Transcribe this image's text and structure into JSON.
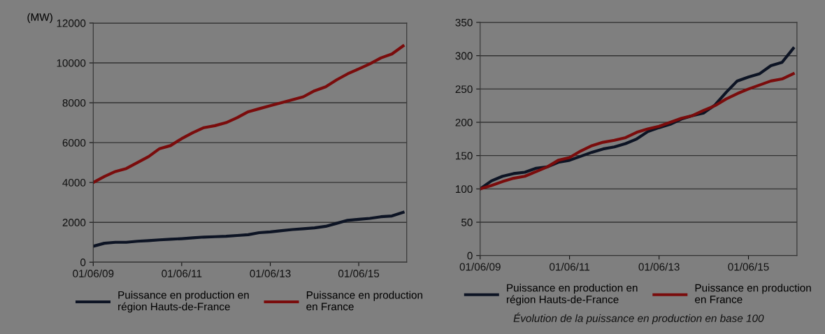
{
  "chart_data": [
    {
      "type": "line",
      "ylabel": "(MW)",
      "x": [
        "2009-06-01",
        "2009-09-01",
        "2009-12-01",
        "2010-03-01",
        "2010-06-01",
        "2010-09-01",
        "2010-12-01",
        "2011-03-01",
        "2011-06-01",
        "2011-09-01",
        "2011-12-01",
        "2012-03-01",
        "2012-06-01",
        "2012-09-01",
        "2012-12-01",
        "2013-03-01",
        "2013-06-01",
        "2013-09-01",
        "2013-12-01",
        "2014-03-01",
        "2014-06-01",
        "2014-09-01",
        "2014-12-01",
        "2015-03-01",
        "2015-06-01",
        "2015-09-01",
        "2015-12-01",
        "2016-03-01",
        "2016-06-01"
      ],
      "series": [
        {
          "name": "Puissance en production en\nrégion Hauts-de-France",
          "color": "#0d1424",
          "values": [
            800,
            950,
            1000,
            1000,
            1050,
            1080,
            1120,
            1150,
            1180,
            1220,
            1260,
            1280,
            1300,
            1340,
            1380,
            1480,
            1520,
            1580,
            1640,
            1680,
            1720,
            1800,
            1950,
            2100,
            2150,
            2200,
            2280,
            2320,
            2500
          ]
        },
        {
          "name": "Puissance en production\nen France",
          "color": "#7a0c0c",
          "values": [
            4000,
            4300,
            4550,
            4700,
            5000,
            5300,
            5700,
            5850,
            6200,
            6500,
            6750,
            6850,
            7000,
            7250,
            7550,
            7700,
            7850,
            8000,
            8150,
            8300,
            8600,
            8800,
            9150,
            9450,
            9700,
            9950,
            10250,
            10450,
            10850
          ]
        }
      ],
      "xlim": [
        "2009-06-01",
        "2016-07-01"
      ],
      "xticks": [
        {
          "value": "2009-06-01",
          "label": "01/06/09"
        },
        {
          "value": "2011-06-01",
          "label": "01/06/11"
        },
        {
          "value": "2013-06-01",
          "label": "01/06/13"
        },
        {
          "value": "2015-06-01",
          "label": "01/06/15"
        }
      ],
      "ylim": [
        0,
        12000
      ],
      "yticks": [
        0,
        2000,
        4000,
        6000,
        8000,
        10000,
        12000
      ],
      "grid": "y",
      "legend": "bottom",
      "marker": "none",
      "line_style": "solid"
    },
    {
      "type": "line",
      "x": [
        "2009-06-01",
        "2009-09-01",
        "2009-12-01",
        "2010-03-01",
        "2010-06-01",
        "2010-09-01",
        "2010-12-01",
        "2011-03-01",
        "2011-06-01",
        "2011-09-01",
        "2011-12-01",
        "2012-03-01",
        "2012-06-01",
        "2012-09-01",
        "2012-12-01",
        "2013-03-01",
        "2013-06-01",
        "2013-09-01",
        "2013-12-01",
        "2014-03-01",
        "2014-06-01",
        "2014-09-01",
        "2014-12-01",
        "2015-03-01",
        "2015-06-01",
        "2015-09-01",
        "2015-12-01",
        "2016-03-01",
        "2016-06-01"
      ],
      "series": [
        {
          "name": "Puissance en production en\nrégion Hauts-de-France",
          "color": "#0d1424",
          "values": [
            100,
            112,
            119,
            123,
            125,
            131,
            133,
            140,
            143,
            149,
            155,
            160,
            163,
            168,
            175,
            186,
            192,
            197,
            205,
            210,
            214,
            226,
            245,
            262,
            268,
            273,
            285,
            290,
            311
          ]
        },
        {
          "name": "Puissance en production\nen France",
          "color": "#7a0c0c",
          "values": [
            100,
            105,
            111,
            116,
            119,
            126,
            133,
            143,
            147,
            157,
            165,
            170,
            173,
            177,
            185,
            190,
            194,
            200,
            206,
            210,
            218,
            225,
            235,
            243,
            250,
            256,
            262,
            265,
            273
          ]
        }
      ],
      "xlim": [
        "2009-06-01",
        "2016-07-01"
      ],
      "xticks": [
        {
          "value": "2009-06-01",
          "label": "01/06/09"
        },
        {
          "value": "2011-06-01",
          "label": "01/06/11"
        },
        {
          "value": "2013-06-01",
          "label": "01/06/13"
        },
        {
          "value": "2015-06-01",
          "label": "01/06/15"
        }
      ],
      "ylim": [
        0,
        350
      ],
      "yticks": [
        0,
        50,
        100,
        150,
        200,
        250,
        300,
        350
      ],
      "grid": "y",
      "legend": "bottom",
      "marker": "none",
      "line_style": "solid",
      "annotations": [
        "Évolution de la puissance en production en base 100"
      ]
    }
  ]
}
